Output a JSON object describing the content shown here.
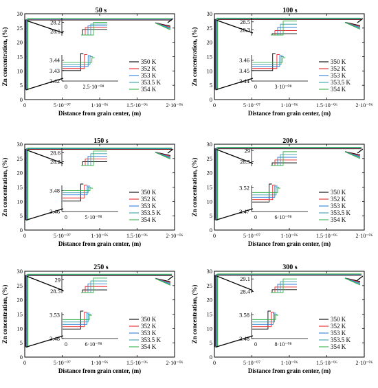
{
  "figure": {
    "series_names": [
      "350 K",
      "352 K",
      "353 K",
      "353.5 K",
      "354 K"
    ],
    "series_colors": [
      "#000000",
      "#e8272a",
      "#2f7fd8",
      "#38a0a8",
      "#34b24a"
    ],
    "xlabel": "Distance from grain center, (m)",
    "ylabel": "Zn concentration, (%)"
  },
  "chart_data": [
    {
      "type": "line",
      "title": "50 s",
      "xlabel": "Distance from grain center, (m)",
      "ylabel": "Zn concentration, (%)",
      "xlim": [
        0,
        2e-06
      ],
      "ylim": [
        0,
        30
      ],
      "x_tick_labels": [
        "0",
        "5·10⁻⁰⁷",
        "1·10⁻⁰⁶",
        "1.5·10⁻⁰⁶",
        "2·10⁻⁰⁶"
      ],
      "y_tick_labels": [
        "0",
        "5",
        "10",
        "15",
        "20",
        "25",
        "30"
      ],
      "series": [
        {
          "name": "350 K",
          "x": [
            0,
            1e-08,
            1e-08,
            2e-06
          ],
          "y": [
            3.43,
            3.43,
            27.8,
            27.8
          ]
        },
        {
          "name": "352 K",
          "x": [
            0,
            1.2e-08,
            1.2e-08,
            2e-06
          ],
          "y": [
            3.432,
            3.432,
            27.8,
            27.8
          ]
        },
        {
          "name": "353 K",
          "x": [
            0,
            1.4e-08,
            1.4e-08,
            2e-06
          ],
          "y": [
            3.434,
            3.434,
            27.8,
            27.8
          ]
        },
        {
          "name": "353.5 K",
          "x": [
            0,
            1.5e-08,
            1.5e-08,
            2e-06
          ],
          "y": [
            3.436,
            3.436,
            27.8,
            27.8
          ]
        },
        {
          "name": "354 K",
          "x": [
            0,
            1.6e-08,
            1.6e-08,
            2e-06
          ],
          "y": [
            3.438,
            3.438,
            27.8,
            27.8
          ]
        }
      ],
      "inset_top": {
        "y_ticks": [
          "28.2",
          "28.1"
        ],
        "ylim": [
          28.05,
          28.25
        ],
        "values": [
          28.12,
          28.14,
          28.16,
          28.18,
          28.2
        ]
      },
      "inset_bottom": {
        "y_ticks": [
          "3.44",
          "3.43",
          "3.42"
        ],
        "ylim": [
          3.42,
          3.445
        ],
        "x_ticks": [
          "0",
          "2.5·10⁻⁰⁸"
        ],
        "xlim": [
          0,
          3e-08
        ],
        "steps": [
          1e-08,
          1.2e-08,
          1.4e-08,
          1.5e-08,
          1.6e-08
        ],
        "values": [
          3.43,
          3.432,
          3.434,
          3.436,
          3.438
        ]
      },
      "legend": "right"
    },
    {
      "type": "line",
      "title": "100 s",
      "xlabel": "Distance from grain center, (m)",
      "ylabel": "Zn concentration, (%)",
      "xlim": [
        0,
        2e-06
      ],
      "ylim": [
        0,
        30
      ],
      "x_tick_labels": [
        "0",
        "5·10⁻⁰⁷",
        "1·10⁻⁰⁶",
        "1.5·10⁻⁰⁶",
        "2·10⁻⁰⁶"
      ],
      "y_tick_labels": [
        "0",
        "5",
        "10",
        "15",
        "20",
        "25",
        "30"
      ],
      "series": [
        {
          "name": "350 K",
          "x": [
            0,
            1.5e-08,
            1.5e-08,
            2e-06
          ],
          "y": [
            3.45,
            3.45,
            28.0,
            28.0
          ]
        },
        {
          "name": "352 K",
          "x": [
            0,
            1.8e-08,
            1.8e-08,
            2e-06
          ],
          "y": [
            3.452,
            3.452,
            28.0,
            28.0
          ]
        },
        {
          "name": "353 K",
          "x": [
            0,
            2e-08,
            2e-08,
            2e-06
          ],
          "y": [
            3.454,
            3.454,
            28.0,
            28.0
          ]
        },
        {
          "name": "353.5 K",
          "x": [
            0,
            2.1e-08,
            2.1e-08,
            2e-06
          ],
          "y": [
            3.456,
            3.456,
            28.0,
            28.0
          ]
        },
        {
          "name": "354 K",
          "x": [
            0,
            2.2e-08,
            2.2e-08,
            2e-06
          ],
          "y": [
            3.458,
            3.458,
            28.0,
            28.0
          ]
        }
      ],
      "inset_top": {
        "y_ticks": [
          "28.5",
          "28.3"
        ],
        "ylim": [
          28.15,
          28.6
        ],
        "values": [
          28.2,
          28.28,
          28.36,
          28.44,
          28.52
        ]
      },
      "inset_bottom": {
        "y_ticks": [
          "3.46",
          "3.45",
          "3.44"
        ],
        "ylim": [
          3.44,
          3.465
        ],
        "x_ticks": [
          "0",
          "3·10⁻⁰⁸"
        ],
        "xlim": [
          0,
          4e-08
        ],
        "steps": [
          1.5e-08,
          1.8e-08,
          2e-08,
          2.1e-08,
          2.2e-08
        ],
        "values": [
          3.45,
          3.452,
          3.454,
          3.456,
          3.458
        ]
      },
      "legend": "right"
    },
    {
      "type": "line",
      "title": "150 s",
      "xlabel": "Distance from grain center, (m)",
      "ylabel": "Zn concentration, (%)",
      "xlim": [
        0,
        2e-06
      ],
      "ylim": [
        0,
        30
      ],
      "x_tick_labels": [
        "0",
        "5·10⁻⁰⁷",
        "1·10⁻⁰⁶",
        "1.5·10⁻⁰⁶",
        "2·10⁻⁰⁶"
      ],
      "y_tick_labels": [
        "0",
        "5",
        "10",
        "15",
        "20",
        "25",
        "30"
      ],
      "series": [
        {
          "name": "350 K",
          "x": [
            0,
            2e-08,
            2e-08,
            2e-06
          ],
          "y": [
            3.47,
            3.47,
            28.2,
            28.2
          ]
        },
        {
          "name": "352 K",
          "x": [
            0,
            2.4e-08,
            2.4e-08,
            2e-06
          ],
          "y": [
            3.473,
            3.473,
            28.2,
            28.2
          ]
        },
        {
          "name": "353 K",
          "x": [
            0,
            2.7e-08,
            2.7e-08,
            2e-06
          ],
          "y": [
            3.476,
            3.476,
            28.2,
            28.2
          ]
        },
        {
          "name": "353.5 K",
          "x": [
            0,
            2.8e-08,
            2.8e-08,
            2e-06
          ],
          "y": [
            3.478,
            3.478,
            28.2,
            28.2
          ]
        },
        {
          "name": "354 K",
          "x": [
            0,
            3e-08,
            3e-08,
            2e-06
          ],
          "y": [
            3.48,
            3.48,
            28.2,
            28.2
          ]
        }
      ],
      "inset_top": {
        "y_ticks": [
          "28.6",
          "28.2"
        ],
        "ylim": [
          28.0,
          28.8
        ],
        "values": [
          28.2,
          28.32,
          28.44,
          28.56,
          28.68
        ]
      },
      "inset_bottom": {
        "y_ticks": [
          "3.48",
          "3.46"
        ],
        "ylim": [
          3.46,
          3.485
        ],
        "x_ticks": [
          "0",
          "5·10⁻⁰⁸"
        ],
        "xlim": [
          0,
          6e-08
        ],
        "steps": [
          2e-08,
          2.4e-08,
          2.7e-08,
          2.8e-08,
          3e-08
        ],
        "values": [
          3.47,
          3.473,
          3.476,
          3.478,
          3.48
        ]
      },
      "legend": "right"
    },
    {
      "type": "line",
      "title": "200 s",
      "xlabel": "Distance from grain center, (m)",
      "ylabel": "Zn concentration, (%)",
      "xlim": [
        0,
        2e-06
      ],
      "ylim": [
        0,
        30
      ],
      "x_tick_labels": [
        "0",
        "5·10⁻⁰⁷",
        "1·10⁻⁰⁶",
        "1.5·10⁻⁰⁶",
        "2·10⁻⁰⁶"
      ],
      "y_tick_labels": [
        "0",
        "5",
        "10",
        "15",
        "20",
        "25",
        "30"
      ],
      "series": [
        {
          "name": "350 K",
          "x": [
            0,
            2.5e-08,
            2.5e-08,
            2e-06
          ],
          "y": [
            3.49,
            3.49,
            28.4,
            28.4
          ]
        },
        {
          "name": "352 K",
          "x": [
            0,
            3e-08,
            3e-08,
            2e-06
          ],
          "y": [
            3.495,
            3.495,
            28.4,
            28.4
          ]
        },
        {
          "name": "353 K",
          "x": [
            0,
            3.3e-08,
            3.3e-08,
            2e-06
          ],
          "y": [
            3.5,
            3.5,
            28.4,
            28.4
          ]
        },
        {
          "name": "353.5 K",
          "x": [
            0,
            3.5e-08,
            3.5e-08,
            2e-06
          ],
          "y": [
            3.505,
            3.505,
            28.4,
            28.4
          ]
        },
        {
          "name": "354 K",
          "x": [
            0,
            3.7e-08,
            3.7e-08,
            2e-06
          ],
          "y": [
            3.51,
            3.51,
            28.4,
            28.4
          ]
        }
      ],
      "inset_top": {
        "y_ticks": [
          "29",
          "28.5"
        ],
        "ylim": [
          28.3,
          29.1
        ],
        "values": [
          28.45,
          28.58,
          28.7,
          28.82,
          28.95
        ]
      },
      "inset_bottom": {
        "y_ticks": [
          "3.52",
          "3.47"
        ],
        "ylim": [
          3.47,
          3.525
        ],
        "x_ticks": [
          "0",
          "6·10⁻⁰⁸"
        ],
        "xlim": [
          0,
          8e-08
        ],
        "steps": [
          2.5e-08,
          3e-08,
          3.3e-08,
          3.5e-08,
          3.7e-08
        ],
        "values": [
          3.49,
          3.495,
          3.5,
          3.505,
          3.51
        ]
      },
      "legend": "right"
    },
    {
      "type": "line",
      "title": "250 s",
      "xlabel": "Distance from grain center, (m)",
      "ylabel": "Zn concentration, (%)",
      "xlim": [
        0,
        2e-06
      ],
      "ylim": [
        0,
        30
      ],
      "x_tick_labels": [
        "0",
        "5·10⁻⁰⁷",
        "1·10⁻⁰⁶",
        "1.5·10⁻⁰⁶",
        "2·10⁻⁰⁶"
      ],
      "y_tick_labels": [
        "0",
        "5",
        "10",
        "15",
        "20",
        "25",
        "30"
      ],
      "series": [
        {
          "name": "350 K",
          "x": [
            0,
            3e-08,
            3e-08,
            2e-06
          ],
          "y": [
            3.5,
            3.5,
            28.5,
            28.5
          ]
        },
        {
          "name": "352 K",
          "x": [
            0,
            3.6e-08,
            3.6e-08,
            2e-06
          ],
          "y": [
            3.505,
            3.505,
            28.5,
            28.5
          ]
        },
        {
          "name": "353 K",
          "x": [
            0,
            4e-08,
            4e-08,
            2e-06
          ],
          "y": [
            3.51,
            3.51,
            28.5,
            28.5
          ]
        },
        {
          "name": "353.5 K",
          "x": [
            0,
            4.2e-08,
            4.2e-08,
            2e-06
          ],
          "y": [
            3.515,
            3.515,
            28.5,
            28.5
          ]
        },
        {
          "name": "354 K",
          "x": [
            0,
            4.4e-08,
            4.4e-08,
            2e-06
          ],
          "y": [
            3.52,
            3.52,
            28.5,
            28.5
          ]
        }
      ],
      "inset_top": {
        "y_ticks": [
          "29",
          "28.5"
        ],
        "ylim": [
          28.4,
          29.2
        ],
        "values": [
          28.55,
          28.7,
          28.82,
          28.95,
          29.08
        ]
      },
      "inset_bottom": {
        "y_ticks": [
          "3.53",
          "3.48"
        ],
        "ylim": [
          3.48,
          3.535
        ],
        "x_ticks": [
          "0",
          "6·10⁻⁰⁸"
        ],
        "xlim": [
          0,
          9e-08
        ],
        "steps": [
          3e-08,
          3.6e-08,
          4e-08,
          4.2e-08,
          4.4e-08
        ],
        "values": [
          3.5,
          3.505,
          3.51,
          3.515,
          3.52
        ]
      },
      "legend": "right"
    },
    {
      "type": "line",
      "title": "300 s",
      "xlabel": "Distance from grain center, (m)",
      "ylabel": "Zn concentration, (%)",
      "xlim": [
        0,
        2e-06
      ],
      "ylim": [
        0,
        30
      ],
      "x_tick_labels": [
        "0",
        "5·10⁻⁰⁷",
        "1·10⁻⁰⁶",
        "1.5·10⁻⁰⁶",
        "2·10⁻⁰⁶"
      ],
      "y_tick_labels": [
        "0",
        "5",
        "10",
        "15",
        "20",
        "25",
        "30"
      ],
      "series": [
        {
          "name": "350 K",
          "x": [
            0,
            3.5e-08,
            3.5e-08,
            2e-06
          ],
          "y": [
            3.52,
            3.52,
            28.6,
            28.6
          ]
        },
        {
          "name": "352 K",
          "x": [
            0,
            4.2e-08,
            4.2e-08,
            2e-06
          ],
          "y": [
            3.53,
            3.53,
            28.6,
            28.6
          ]
        },
        {
          "name": "353 K",
          "x": [
            0,
            4.6e-08,
            4.6e-08,
            2e-06
          ],
          "y": [
            3.54,
            3.54,
            28.6,
            28.6
          ]
        },
        {
          "name": "353.5 K",
          "x": [
            0,
            4.9e-08,
            4.9e-08,
            2e-06
          ],
          "y": [
            3.55,
            3.55,
            28.6,
            28.6
          ]
        },
        {
          "name": "354 K",
          "x": [
            0,
            5.1e-08,
            5.1e-08,
            2e-06
          ],
          "y": [
            3.56,
            3.56,
            28.6,
            28.6
          ]
        }
      ],
      "inset_top": {
        "y_ticks": [
          "29.1",
          "28.4"
        ],
        "ylim": [
          28.3,
          29.3
        ],
        "values": [
          28.5,
          28.65,
          28.8,
          28.95,
          29.1
        ]
      },
      "inset_bottom": {
        "y_ticks": [
          "3.58",
          "3.48"
        ],
        "ylim": [
          3.48,
          3.59
        ],
        "x_ticks": [
          "0",
          "8·10⁻⁰⁸"
        ],
        "xlim": [
          0,
          1.2e-07
        ],
        "steps": [
          3.5e-08,
          4.2e-08,
          4.6e-08,
          4.9e-08,
          5.1e-08
        ],
        "values": [
          3.52,
          3.53,
          3.54,
          3.55,
          3.56
        ]
      },
      "legend": "right"
    }
  ]
}
